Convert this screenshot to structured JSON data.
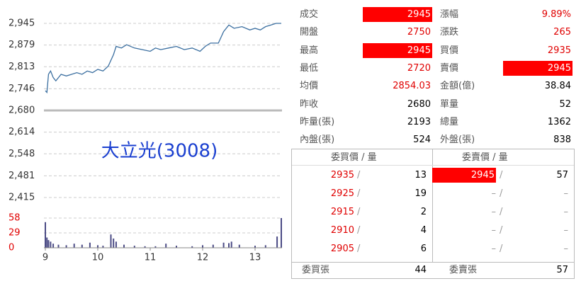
{
  "chart_data": [
    {
      "type": "line",
      "color": "#3b6fa0",
      "xlim": [
        9,
        13.5
      ],
      "xticks": [
        9,
        10,
        11,
        12,
        13
      ],
      "ylim": [
        2415,
        2945
      ],
      "yticks": [
        {
          "value": 2415,
          "label": "2,415"
        },
        {
          "value": 2481,
          "label": "2,481"
        },
        {
          "value": 2548,
          "label": "2,548"
        },
        {
          "value": 2614,
          "label": "2,614"
        },
        {
          "value": 2680,
          "label": "2,680"
        },
        {
          "value": 2746,
          "label": "2,746"
        },
        {
          "value": 2813,
          "label": "2,813"
        },
        {
          "value": 2879,
          "label": "2,879"
        },
        {
          "value": 2945,
          "label": "2,945"
        }
      ],
      "baseline": 2680,
      "annotation": "大立光(3008)",
      "x": [
        9.0,
        9.03,
        9.06,
        9.1,
        9.15,
        9.2,
        9.3,
        9.4,
        9.5,
        9.6,
        9.7,
        9.8,
        9.9,
        10.0,
        10.1,
        10.2,
        10.3,
        10.35,
        10.45,
        10.55,
        10.7,
        10.85,
        11.0,
        11.1,
        11.2,
        11.35,
        11.5,
        11.65,
        11.8,
        11.95,
        12.05,
        12.15,
        12.3,
        12.4,
        12.5,
        12.6,
        12.75,
        12.9,
        13.0,
        13.1,
        13.2,
        13.3,
        13.4,
        13.5
      ],
      "values": [
        2740,
        2735,
        2790,
        2800,
        2780,
        2770,
        2790,
        2785,
        2790,
        2795,
        2790,
        2800,
        2795,
        2805,
        2800,
        2815,
        2850,
        2875,
        2870,
        2880,
        2870,
        2865,
        2860,
        2870,
        2865,
        2870,
        2875,
        2865,
        2870,
        2860,
        2875,
        2885,
        2885,
        2920,
        2940,
        2930,
        2935,
        2925,
        2930,
        2925,
        2935,
        2940,
        2945,
        2945
      ]
    },
    {
      "type": "bar",
      "color": "#4b4b85",
      "xlim": [
        9,
        13.5
      ],
      "ylim": [
        0,
        58
      ],
      "yticks": [
        0,
        29,
        58
      ],
      "x": [
        9.0,
        9.03,
        9.06,
        9.1,
        9.15,
        9.25,
        9.4,
        9.55,
        9.7,
        9.85,
        10.0,
        10.1,
        10.25,
        10.3,
        10.35,
        10.5,
        10.7,
        10.9,
        11.1,
        11.3,
        11.5,
        11.8,
        12.0,
        12.2,
        12.4,
        12.5,
        12.55,
        12.7,
        13.0,
        13.2,
        13.42,
        13.5
      ],
      "values": [
        50,
        20,
        15,
        12,
        8,
        6,
        5,
        8,
        6,
        10,
        5,
        4,
        26,
        18,
        12,
        6,
        4,
        3,
        3,
        8,
        4,
        3,
        5,
        6,
        10,
        9,
        12,
        6,
        4,
        5,
        22,
        58
      ]
    }
  ],
  "quote": {
    "rows": [
      [
        "成交",
        "2945",
        "漲幅",
        "9.89%"
      ],
      [
        "開盤",
        "2750",
        "漲跌",
        "265"
      ],
      [
        "最高",
        "2945",
        "買價",
        "2935"
      ],
      [
        "最低",
        "2720",
        "賣價",
        "2945"
      ],
      [
        "均價",
        "2854.03",
        "金額(億)",
        "38.84"
      ],
      [
        "昨收",
        "2680",
        "單量",
        "52"
      ],
      [
        "昨量(張)",
        "2193",
        "總量",
        "1362"
      ],
      [
        "內盤(張)",
        "524",
        "外盤(張)",
        "838"
      ]
    ]
  },
  "book": {
    "header": [
      "委買價 / 量",
      "委賣價 / 量"
    ],
    "separator": "/",
    "rows": [
      {
        "bid_price": "2935",
        "bid_qty": "13",
        "ask_price": "2945",
        "ask_qty": "57"
      },
      {
        "bid_price": "2925",
        "bid_qty": "19",
        "ask_price": "–",
        "ask_qty": "–"
      },
      {
        "bid_price": "2915",
        "bid_qty": "2",
        "ask_price": "–",
        "ask_qty": "–"
      },
      {
        "bid_price": "2910",
        "bid_qty": "4",
        "ask_price": "–",
        "ask_qty": "–"
      },
      {
        "bid_price": "2905",
        "bid_qty": "6",
        "ask_price": "–",
        "ask_qty": "–"
      }
    ],
    "footer": [
      "委買張",
      "44",
      "委賣張",
      "57"
    ]
  }
}
